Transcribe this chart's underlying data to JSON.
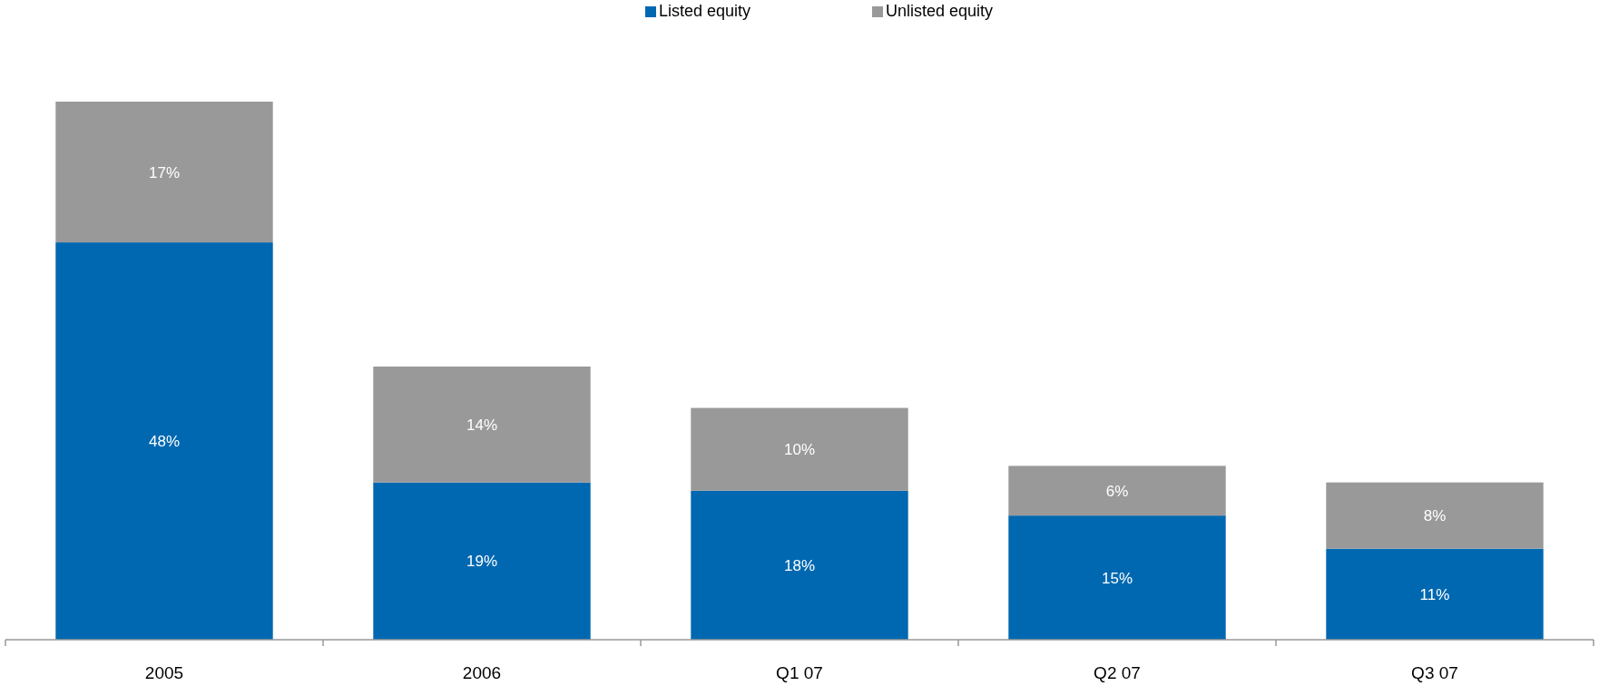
{
  "chart_data": {
    "type": "bar",
    "stacked": true,
    "categories": [
      "2005",
      "2006",
      "Q1 07",
      "Q2 07",
      "Q3 07"
    ],
    "legend": "top",
    "series": [
      {
        "name": "Listed equity",
        "color": "#0068b1",
        "values": [
          48,
          19,
          18,
          15,
          11
        ],
        "value_labels": [
          "48%",
          "19%",
          "18%",
          "15%",
          "11%"
        ]
      },
      {
        "name": "Unlisted equity",
        "color": "#999999",
        "values": [
          17,
          14,
          10,
          6,
          8
        ],
        "value_labels": [
          "17%",
          "14%",
          "10%",
          "6%",
          "8%"
        ]
      }
    ]
  }
}
